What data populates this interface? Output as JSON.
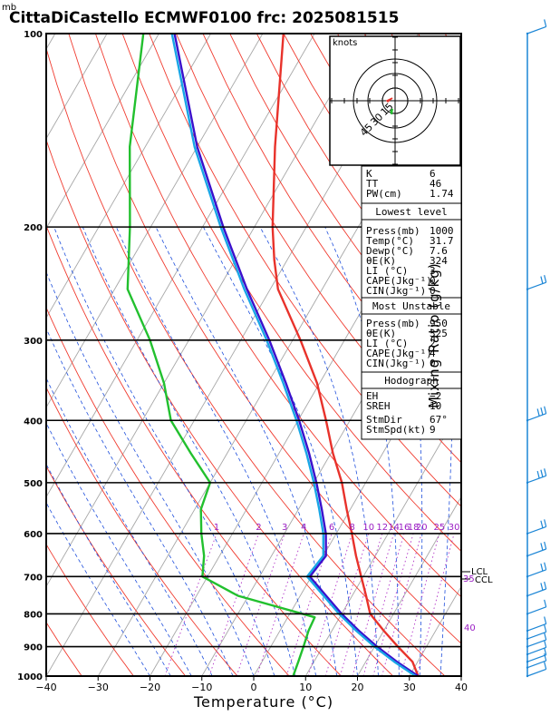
{
  "header": {
    "title": "CittaDiCastello ECMWF0100 frc: 2025081515",
    "units_mb": "mb",
    "xlabel": "Temperature (°C)",
    "right_label": "Mixing Ratio (g/kg)"
  },
  "hodograph": {
    "label": "knots",
    "rings": [
      "15",
      "30",
      "45"
    ]
  },
  "indices": {
    "top": [
      {
        "k": "K",
        "v": "6"
      },
      {
        "k": "TT",
        "v": "46"
      },
      {
        "k": "PW(cm)",
        "v": "1.74"
      }
    ],
    "lowest_level": {
      "header": "Lowest level",
      "rows": [
        {
          "k": "Press(mb)",
          "v": "1000"
        },
        {
          "k": "Temp(°C)",
          "v": "31.7"
        },
        {
          "k": "Dewp(°C)",
          "v": "7.6"
        },
        {
          "k": "θE(K)",
          "v": "324"
        },
        {
          "k": "LI (°C)",
          "v": "3"
        },
        {
          "k": "CAPE(Jkg⁻¹)",
          "v": "0"
        },
        {
          "k": "CIN(Jkg⁻¹)",
          "v": "0"
        }
      ]
    },
    "most_unstable": {
      "header": "Most Unstable",
      "rows": [
        {
          "k": "Press(mb)",
          "v": "950"
        },
        {
          "k": "θE(K)",
          "v": "325"
        },
        {
          "k": "LI (°C)",
          "v": "2"
        },
        {
          "k": "CAPE(Jkg⁻¹)",
          "v": "4"
        },
        {
          "k": "CIN(Jkg⁻¹)",
          "v": "0"
        }
      ]
    },
    "hodograph_box": {
      "header": "Hodograph",
      "rows": [
        {
          "k": "EH",
          "v": "−2"
        },
        {
          "k": "SREH",
          "v": "10"
        },
        {
          "k": "StmDir",
          "v": "67°"
        },
        {
          "k": "StmSpd(kt)",
          "v": "9"
        }
      ]
    }
  },
  "annotations": {
    "lcl": "LCL",
    "ccl": "CCL",
    "ccl_temp": "35",
    "theta_e_label": "40"
  },
  "chart_data": {
    "type": "line",
    "title": "CittaDiCastello ECMWF0100 frc: 2025081515",
    "xlabel": "Temperature (°C)",
    "ylabel": "mb",
    "xlim": [
      -40,
      40
    ],
    "ylim": [
      1000,
      100
    ],
    "y_scale": "log",
    "x_ticks": [
      "−40",
      "−30",
      "−20",
      "−10",
      "0",
      "10",
      "20",
      "30",
      "40"
    ],
    "y_ticks": [
      "100",
      "200",
      "300",
      "400",
      "500",
      "600",
      "700",
      "800",
      "900",
      "1000"
    ],
    "mixing_ratio_labels": [
      "1",
      "2",
      "3",
      "4",
      "6",
      "8",
      "10",
      "12",
      "14",
      "16",
      "18",
      "20",
      "25",
      "30"
    ],
    "mixing_ratio_values": [
      1,
      2,
      3,
      4,
      6,
      8,
      10,
      12,
      14,
      16,
      18,
      20,
      25,
      30
    ],
    "series": [
      {
        "name": "Temperature",
        "color": "#e8322b",
        "points": [
          [
            1000,
            31.7
          ],
          [
            950,
            29.0
          ],
          [
            900,
            24.5
          ],
          [
            850,
            20.0
          ],
          [
            800,
            15.5
          ],
          [
            750,
            12.7
          ],
          [
            700,
            9.6
          ],
          [
            650,
            6.3
          ],
          [
            600,
            3.0
          ],
          [
            550,
            -0.7
          ],
          [
            500,
            -4.6
          ],
          [
            450,
            -9.6
          ],
          [
            400,
            -14.6
          ],
          [
            350,
            -20.5
          ],
          [
            300,
            -28.5
          ],
          [
            250,
            -38.5
          ],
          [
            225,
            -42.5
          ],
          [
            200,
            -46.5
          ],
          [
            150,
            -55.0
          ],
          [
            100,
            -66.0
          ]
        ]
      },
      {
        "name": "Dewpoint",
        "color": "#22c02e",
        "points": [
          [
            1000,
            7.6
          ],
          [
            950,
            7.0
          ],
          [
            900,
            6.3
          ],
          [
            850,
            5.5
          ],
          [
            810,
            5.2
          ],
          [
            750,
            -12.0
          ],
          [
            700,
            -21.0
          ],
          [
            650,
            -23.0
          ],
          [
            600,
            -26.0
          ],
          [
            550,
            -28.8
          ],
          [
            500,
            -30.0
          ],
          [
            450,
            -37.0
          ],
          [
            400,
            -44.5
          ],
          [
            350,
            -50.0
          ],
          [
            300,
            -57.5
          ],
          [
            250,
            -67.5
          ],
          [
            200,
            -74.0
          ],
          [
            150,
            -83.0
          ],
          [
            100,
            -93.0
          ]
        ]
      },
      {
        "name": "Parcel (θE)",
        "color": "#3b10cc",
        "points": [
          [
            1000,
            31.7
          ],
          [
            950,
            26.0
          ],
          [
            900,
            20.5
          ],
          [
            850,
            15.2
          ],
          [
            800,
            10.0
          ],
          [
            750,
            5.0
          ],
          [
            700,
            -0.3
          ],
          [
            650,
            0.5
          ],
          [
            600,
            -2.0
          ],
          [
            550,
            -5.5
          ],
          [
            500,
            -9.5
          ],
          [
            450,
            -14.2
          ],
          [
            400,
            -19.8
          ],
          [
            350,
            -26.5
          ],
          [
            300,
            -34.5
          ],
          [
            250,
            -44.5
          ],
          [
            200,
            -56.0
          ],
          [
            150,
            -70.0
          ],
          [
            100,
            -87.0
          ]
        ]
      },
      {
        "name": "Virtual temperature",
        "color": "#19a6e6",
        "points": [
          [
            1000,
            31.2
          ],
          [
            950,
            25.5
          ],
          [
            900,
            20.0
          ],
          [
            850,
            14.7
          ],
          [
            800,
            9.5
          ],
          [
            750,
            4.5
          ],
          [
            700,
            -0.8
          ],
          [
            650,
            0.0
          ],
          [
            600,
            -2.5
          ],
          [
            550,
            -6.0
          ],
          [
            500,
            -10.0
          ],
          [
            450,
            -14.7
          ],
          [
            400,
            -20.3
          ],
          [
            350,
            -27.0
          ],
          [
            300,
            -35.0
          ],
          [
            250,
            -45.0
          ],
          [
            200,
            -56.5
          ],
          [
            150,
            -70.5
          ],
          [
            100,
            -87.5
          ]
        ]
      }
    ],
    "wind_barbs_kt": [
      [
        1000,
        6
      ],
      [
        970,
        5
      ],
      [
        950,
        5
      ],
      [
        925,
        6
      ],
      [
        900,
        5
      ],
      [
        875,
        5
      ],
      [
        850,
        6
      ],
      [
        800,
        5
      ],
      [
        750,
        8
      ],
      [
        700,
        10
      ],
      [
        650,
        8
      ],
      [
        600,
        12
      ],
      [
        500,
        15
      ],
      [
        400,
        18
      ],
      [
        250,
        10
      ],
      [
        100,
        5
      ]
    ]
  }
}
